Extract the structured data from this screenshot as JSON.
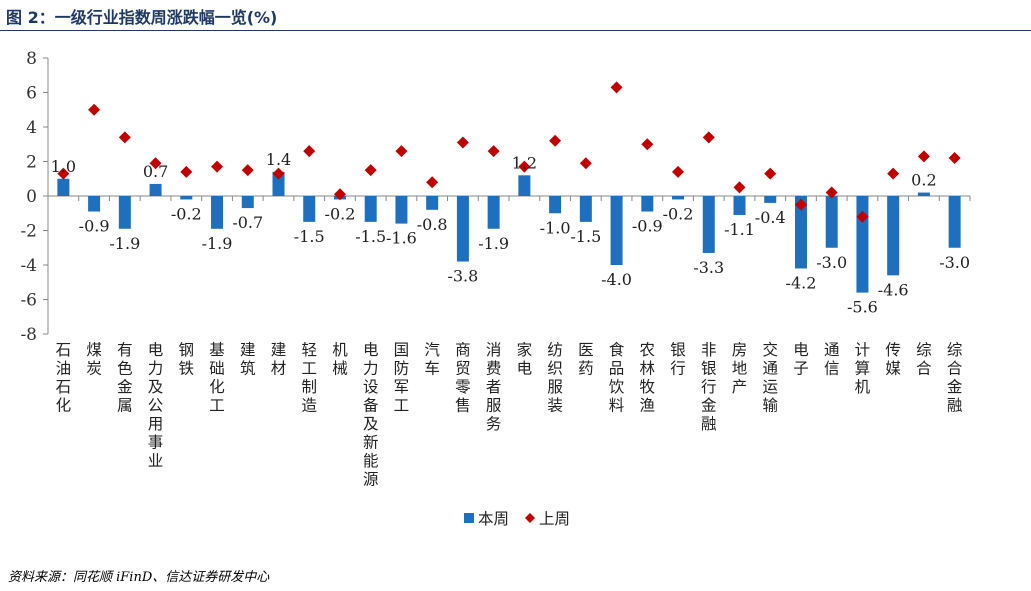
{
  "figure_title": "图 2：一级行业指数周涨跌幅一览(%)",
  "source_note": "资料来源：同花顺 iFinD、信达证券研发中心",
  "colors": {
    "bar": "#1f6fbf",
    "marker": "#c00000",
    "title": "#1f3864"
  },
  "chart_data": {
    "type": "bar",
    "categories": [
      "石油石化",
      "煤炭",
      "有色金属",
      "电力及公用事业",
      "钢铁",
      "基础化工",
      "建筑",
      "建材",
      "轻工制造",
      "机械",
      "电力设备及新能源",
      "国防军工",
      "汽车",
      "商贸零售",
      "消费者服务",
      "家电",
      "纺织服装",
      "医药",
      "食品饮料",
      "农林牧渔",
      "银行",
      "非银行金融",
      "房地产",
      "交通运输",
      "电子",
      "通信",
      "计算机",
      "传媒",
      "综合",
      "综合金融"
    ],
    "series": [
      {
        "name": "本周",
        "type": "bar",
        "values": [
          1.0,
          -0.9,
          -1.9,
          0.7,
          -0.2,
          -1.9,
          -0.7,
          1.4,
          -1.5,
          -0.2,
          -1.5,
          -1.6,
          -0.8,
          -3.8,
          -1.9,
          1.2,
          -1.0,
          -1.5,
          -4.0,
          -0.9,
          -0.2,
          -3.3,
          -1.1,
          -0.4,
          -4.2,
          -3.0,
          -5.6,
          -4.6,
          0.2,
          -3.0
        ],
        "labels": [
          "1.0",
          "-0.9",
          "-1.9",
          "0.7",
          "-0.2",
          "-1.9",
          "-0.7",
          "1.4",
          "-1.5",
          "-0.2",
          "-1.5",
          "-1.6",
          "-0.8",
          "-3.8",
          "-1.9",
          "1.2",
          "-1.0",
          "-1.5",
          "-4.0",
          "-0.9",
          "-0.2",
          "-3.3",
          "-1.1",
          "-0.4",
          "-4.2",
          "-3.0",
          "-5.6",
          "-4.6",
          "0.2",
          "-3.0"
        ]
      },
      {
        "name": "上周",
        "type": "scatter",
        "values": [
          1.3,
          5.0,
          3.4,
          1.9,
          1.4,
          1.7,
          1.5,
          1.3,
          2.6,
          0.1,
          1.5,
          2.6,
          0.8,
          3.1,
          2.6,
          1.7,
          3.2,
          1.9,
          6.3,
          3.0,
          1.4,
          3.4,
          0.5,
          1.3,
          -0.5,
          0.2,
          -1.2,
          1.3,
          2.3,
          2.2
        ]
      }
    ],
    "y_ticks": [
      "8",
      "6",
      "4",
      "2",
      "0",
      "-2",
      "-4",
      "-6",
      "-8"
    ],
    "ylim": [
      -8,
      8
    ],
    "grid": false,
    "legend_position": "bottom"
  }
}
